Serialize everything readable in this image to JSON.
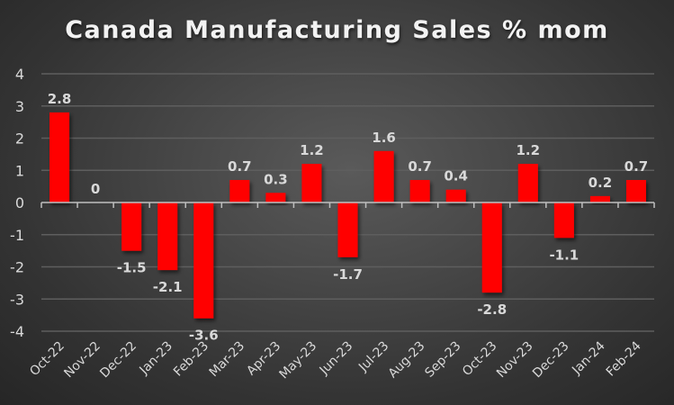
{
  "chart_data": {
    "type": "bar",
    "title": "Canada Manufacturing Sales % mom",
    "xlabel": "",
    "ylabel": "",
    "categories": [
      "Oct-22",
      "Nov-22",
      "Dec-22",
      "Jan-23",
      "Feb-23",
      "Mar-23",
      "Apr-23",
      "May-23",
      "Jun-23",
      "Jul-23",
      "Aug-23",
      "Sep-23",
      "Oct-23",
      "Nov-23",
      "Dec-23",
      "Jan-24",
      "Feb-24"
    ],
    "values": [
      2.8,
      0,
      -1.5,
      -2.1,
      -3.6,
      0.7,
      0.3,
      1.2,
      -1.7,
      1.6,
      0.7,
      0.4,
      -2.8,
      1.2,
      -1.1,
      0.2,
      0.7
    ],
    "data_labels": [
      "2.8",
      "0",
      "-1.5",
      "-2.1",
      "-3.6",
      "0.7",
      "0.3",
      "1.2",
      "-1.7",
      "1.6",
      "0.7",
      "0.4",
      "-2.8",
      "1.2",
      "-1.1",
      "0.2",
      "0.7"
    ],
    "ylim": [
      -4,
      4
    ],
    "yticks": [
      4,
      3,
      2,
      1,
      0,
      -1,
      -2,
      -3,
      -4
    ],
    "ytick_labels": [
      "4",
      "3",
      "2",
      "1",
      "0",
      "-1",
      "-2",
      "-3",
      "-4"
    ],
    "grid": true,
    "legend": "none",
    "bar_color": "#ff0000",
    "background_color": "#3c3c3c",
    "text_color": "#d9d9d9"
  }
}
